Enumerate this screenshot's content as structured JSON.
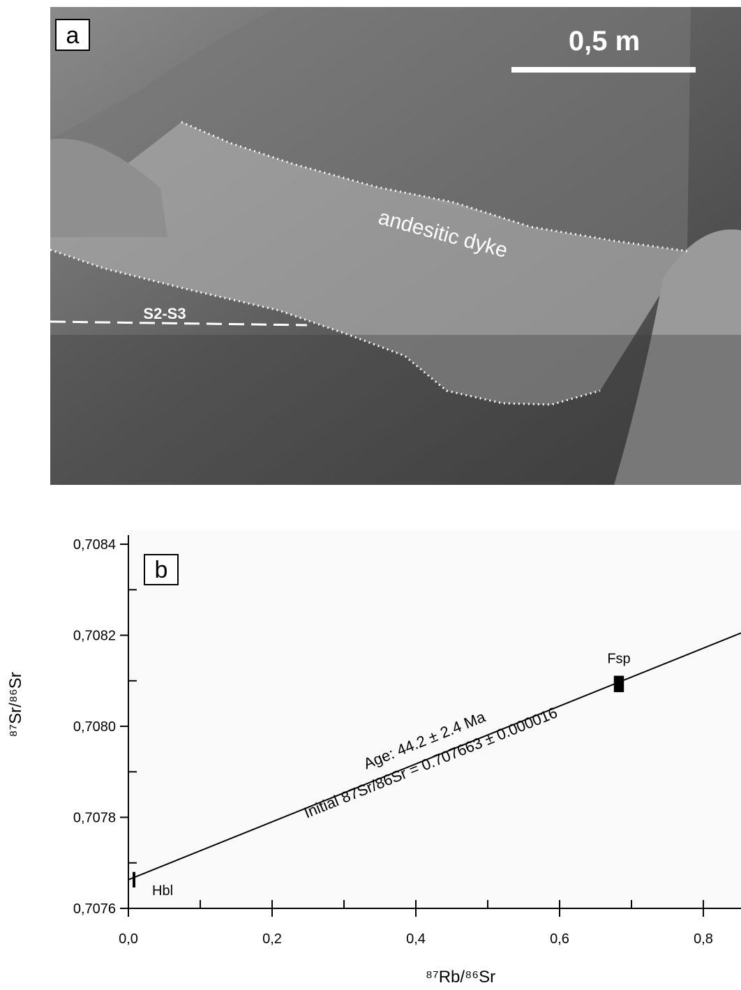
{
  "photo": {
    "panel_label": "a",
    "scale_label": "0,5 m",
    "dyke_label": "andesitic dyke",
    "foliation_label": "S2-S3"
  },
  "chart_data": {
    "type": "scatter",
    "panel_label": "b",
    "x_label": "⁸⁷Rb/⁸⁶Sr",
    "y_label": "⁸⁷Sr/⁸⁶Sr",
    "xlim": [
      0,
      0.8524
    ],
    "ylim": [
      0.7076,
      0.70842
    ],
    "xticks": [
      {
        "value": 0,
        "label": "0,0"
      },
      {
        "value": 0.2,
        "label": "0,2"
      },
      {
        "value": 0.4,
        "label": "0,4"
      },
      {
        "value": 0.6,
        "label": "0,6"
      },
      {
        "value": 0.8,
        "label": "0,8"
      }
    ],
    "xminor": [
      0.1,
      0.3,
      0.5,
      0.7
    ],
    "yticks": [
      {
        "value": 0.7076,
        "label": "0,7076"
      },
      {
        "value": 0.7078,
        "label": "0,7078"
      },
      {
        "value": 0.708,
        "label": "0,7080"
      },
      {
        "value": 0.7082,
        "label": "0,7082"
      },
      {
        "value": 0.7084,
        "label": "0,7084"
      }
    ],
    "yminor": [
      0.7077,
      0.7079,
      0.7081,
      0.7083
    ],
    "points": [
      {
        "name": "Hbl",
        "x": 0.0078,
        "y": 0.707663,
        "yerr": 1.7e-05
      },
      {
        "name": "Fsp",
        "x": 0.6825,
        "y": 0.708093,
        "xerr": 0.007,
        "yerr": 1.8e-05
      }
    ],
    "fit": {
      "x": [
        0,
        0.8524
      ],
      "y": [
        0.707663,
        0.708205
      ],
      "color": "#000000"
    },
    "annotations": [
      "Age: 44.2 ± 2.4 Ma",
      "Initial 87Sr/86Sr = 0.707663 ± 0.000016"
    ]
  }
}
